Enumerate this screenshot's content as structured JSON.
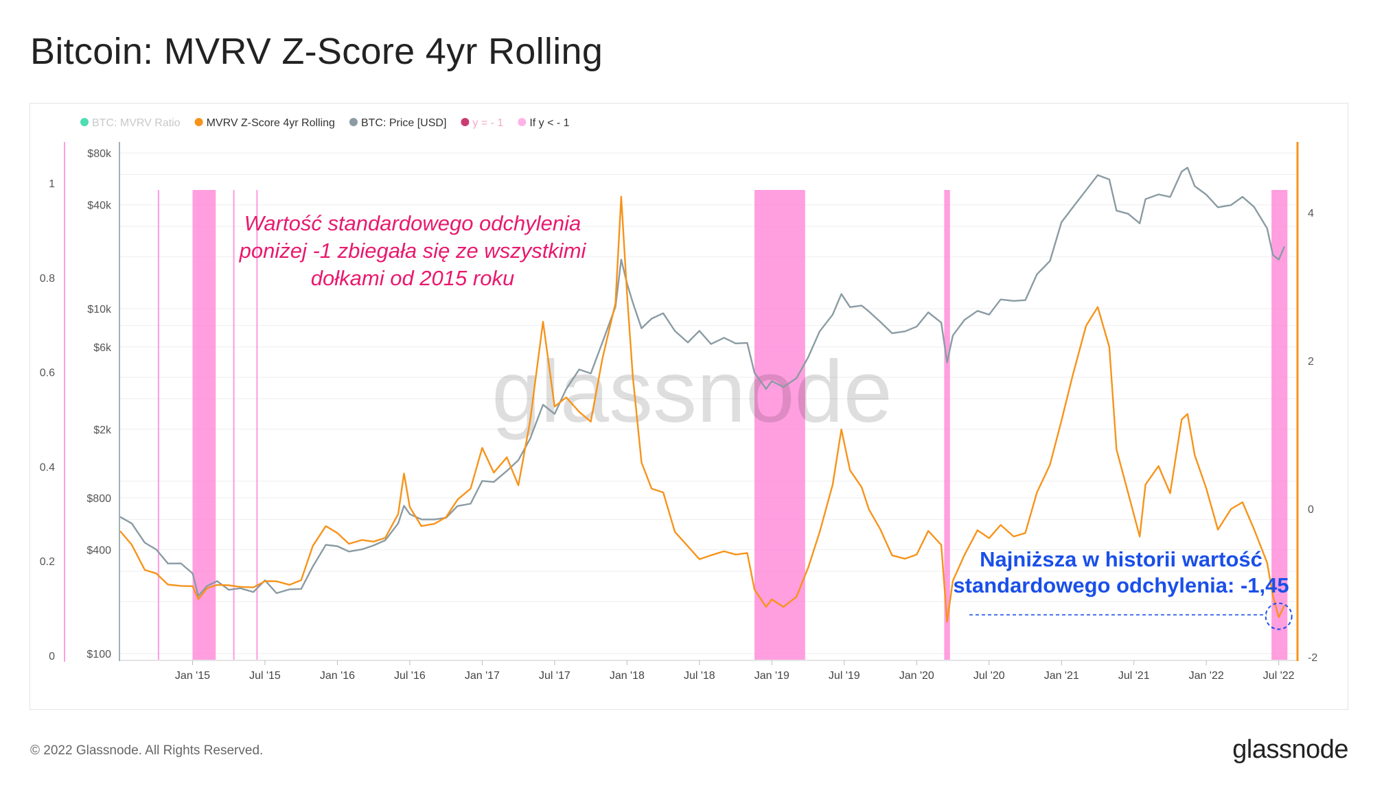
{
  "title": "Bitcoin: MVRV Z-Score 4yr Rolling",
  "footer": {
    "copyright": "© 2022 Glassnode. All Rights Reserved.",
    "logo": "glassnode"
  },
  "watermark": "glassnode",
  "chart_data": {
    "type": "line",
    "legend_placement": "top-left",
    "legend": [
      {
        "label": "BTC: MVRV Ratio",
        "color": "#2fd6a6",
        "muted": true
      },
      {
        "label": "MVRV Z-Score 4yr Rolling",
        "color": "#f7931a",
        "muted": false
      },
      {
        "label": "BTC: Price [USD]",
        "color": "#8a9ba3",
        "muted": false
      },
      {
        "label": "y = - 1",
        "color": "#c2185b",
        "muted": true
      },
      {
        "label": "If y < - 1",
        "color": "#ffb3e6",
        "muted": false
      }
    ],
    "x_ticks": [
      "Jan '15",
      "Jul '15",
      "Jan '16",
      "Jul '16",
      "Jan '17",
      "Jul '17",
      "Jan '18",
      "Jul '18",
      "Jan '19",
      "Jul '19",
      "Jan '20",
      "Jul '20",
      "Jan '21",
      "Jul '21",
      "Jan '22",
      "Jul '22"
    ],
    "x_tick_values": [
      2015.0,
      2015.5,
      2016.0,
      2016.5,
      2017.0,
      2017.5,
      2018.0,
      2018.5,
      2019.0,
      2019.5,
      2020.0,
      2020.5,
      2021.0,
      2021.5,
      2022.0,
      2022.5
    ],
    "xlim": [
      2014.5,
      2022.62
    ],
    "left_axis_ticks": [
      "1",
      "0.8",
      "0.6",
      "0.4",
      "0.2",
      "0"
    ],
    "left_axis_values": [
      1,
      0.8,
      0.6,
      0.4,
      0.2,
      0
    ],
    "price_axis_ticks": [
      "$80k",
      "$40k",
      "$10k",
      "$6k",
      "$2k",
      "$800",
      "$400",
      "$100"
    ],
    "price_axis_values": [
      80000,
      40000,
      10000,
      6000,
      2000,
      800,
      400,
      100
    ],
    "price_axis_scale": "log",
    "right_axis_ticks": [
      "4",
      "2",
      "0",
      "-2"
    ],
    "right_axis_values": [
      4,
      2,
      0,
      -2
    ],
    "grid": true,
    "series": [
      {
        "name": "BTC: Price [USD]",
        "color": "#8a9ba3",
        "axis": "price",
        "points": [
          [
            2014.5,
            620
          ],
          [
            2014.58,
            560
          ],
          [
            2014.67,
            450
          ],
          [
            2014.75,
            390
          ],
          [
            2014.83,
            340
          ],
          [
            2014.92,
            330
          ],
          [
            2015.0,
            290
          ],
          [
            2015.04,
            220
          ],
          [
            2015.1,
            240
          ],
          [
            2015.17,
            270
          ],
          [
            2015.25,
            230
          ],
          [
            2015.33,
            240
          ],
          [
            2015.42,
            230
          ],
          [
            2015.5,
            260
          ],
          [
            2015.58,
            230
          ],
          [
            2015.67,
            230
          ],
          [
            2015.75,
            240
          ],
          [
            2015.83,
            320
          ],
          [
            2015.92,
            420
          ],
          [
            2016.0,
            430
          ],
          [
            2016.08,
            380
          ],
          [
            2016.17,
            410
          ],
          [
            2016.25,
            420
          ],
          [
            2016.33,
            450
          ],
          [
            2016.42,
            580
          ],
          [
            2016.46,
            700
          ],
          [
            2016.5,
            660
          ],
          [
            2016.58,
            590
          ],
          [
            2016.67,
            600
          ],
          [
            2016.75,
            620
          ],
          [
            2016.83,
            700
          ],
          [
            2016.92,
            760
          ],
          [
            2017.0,
            980
          ],
          [
            2017.08,
            1000
          ],
          [
            2017.17,
            1150
          ],
          [
            2017.25,
            1300
          ],
          [
            2017.33,
            1800
          ],
          [
            2017.42,
            2700
          ],
          [
            2017.5,
            2500
          ],
          [
            2017.58,
            3400
          ],
          [
            2017.67,
            4400
          ],
          [
            2017.75,
            4300
          ],
          [
            2017.83,
            6200
          ],
          [
            2017.92,
            10500
          ],
          [
            2017.96,
            19000
          ],
          [
            2018.0,
            14000
          ],
          [
            2018.04,
            11000
          ],
          [
            2018.1,
            7500
          ],
          [
            2018.17,
            9000
          ],
          [
            2018.25,
            9200
          ],
          [
            2018.33,
            7500
          ],
          [
            2018.42,
            6400
          ],
          [
            2018.5,
            7300
          ],
          [
            2018.58,
            6400
          ],
          [
            2018.67,
            6600
          ],
          [
            2018.75,
            6400
          ],
          [
            2018.83,
            6300
          ],
          [
            2018.88,
            4200
          ],
          [
            2018.96,
            3500
          ],
          [
            2019.0,
            3700
          ],
          [
            2019.08,
            3600
          ],
          [
            2019.17,
            3900
          ],
          [
            2019.25,
            5200
          ],
          [
            2019.33,
            7500
          ],
          [
            2019.42,
            9000
          ],
          [
            2019.48,
            12500
          ],
          [
            2019.54,
            10000
          ],
          [
            2019.62,
            10500
          ],
          [
            2019.67,
            9700
          ],
          [
            2019.75,
            8200
          ],
          [
            2019.83,
            7400
          ],
          [
            2019.92,
            7200
          ],
          [
            2020.0,
            8000
          ],
          [
            2020.08,
            9500
          ],
          [
            2020.17,
            8200
          ],
          [
            2020.21,
            5000
          ],
          [
            2020.25,
            6800
          ],
          [
            2020.33,
            8800
          ],
          [
            2020.42,
            9600
          ],
          [
            2020.5,
            9200
          ],
          [
            2020.58,
            11500
          ],
          [
            2020.67,
            10800
          ],
          [
            2020.75,
            11500
          ],
          [
            2020.83,
            15500
          ],
          [
            2020.92,
            19000
          ],
          [
            2021.0,
            32000
          ],
          [
            2021.08,
            38000
          ],
          [
            2021.17,
            50000
          ],
          [
            2021.25,
            58000
          ],
          [
            2021.33,
            57000
          ],
          [
            2021.38,
            37000
          ],
          [
            2021.46,
            35000
          ],
          [
            2021.54,
            32000
          ],
          [
            2021.58,
            42000
          ],
          [
            2021.67,
            47000
          ],
          [
            2021.75,
            44000
          ],
          [
            2021.83,
            62000
          ],
          [
            2021.87,
            67000
          ],
          [
            2021.92,
            50000
          ],
          [
            2022.0,
            47000
          ],
          [
            2022.08,
            38000
          ],
          [
            2022.17,
            40000
          ],
          [
            2022.25,
            45000
          ],
          [
            2022.33,
            38000
          ],
          [
            2022.42,
            30000
          ],
          [
            2022.46,
            20000
          ],
          [
            2022.5,
            19500
          ],
          [
            2022.54,
            23000
          ]
        ]
      },
      {
        "name": "MVRV Z-Score 4yr Rolling",
        "color": "#f7931a",
        "axis": "right",
        "points": [
          [
            2014.5,
            -0.3
          ],
          [
            2014.58,
            -0.5
          ],
          [
            2014.67,
            -0.8
          ],
          [
            2014.75,
            -0.9
          ],
          [
            2014.83,
            -1.0
          ],
          [
            2014.92,
            -1.05
          ],
          [
            2015.0,
            -1.05
          ],
          [
            2015.04,
            -1.2
          ],
          [
            2015.1,
            -1.1
          ],
          [
            2015.17,
            -1.0
          ],
          [
            2015.25,
            -1.05
          ],
          [
            2015.33,
            -1.05
          ],
          [
            2015.42,
            -1.05
          ],
          [
            2015.5,
            -1.0
          ],
          [
            2015.58,
            -0.95
          ],
          [
            2015.67,
            -1.05
          ],
          [
            2015.75,
            -0.95
          ],
          [
            2015.83,
            -0.5
          ],
          [
            2015.92,
            -0.25
          ],
          [
            2016.0,
            -0.3
          ],
          [
            2016.08,
            -0.5
          ],
          [
            2016.17,
            -0.4
          ],
          [
            2016.25,
            -0.45
          ],
          [
            2016.33,
            -0.4
          ],
          [
            2016.42,
            -0.05
          ],
          [
            2016.46,
            0.45
          ],
          [
            2016.5,
            0.05
          ],
          [
            2016.58,
            -0.25
          ],
          [
            2016.67,
            -0.2
          ],
          [
            2016.75,
            -0.1
          ],
          [
            2016.83,
            0.1
          ],
          [
            2016.92,
            0.3
          ],
          [
            2017.0,
            0.8
          ],
          [
            2017.08,
            0.5
          ],
          [
            2017.17,
            0.7
          ],
          [
            2017.25,
            0.3
          ],
          [
            2017.33,
            1.2
          ],
          [
            2017.42,
            2.5
          ],
          [
            2017.5,
            1.4
          ],
          [
            2017.58,
            1.5
          ],
          [
            2017.67,
            1.3
          ],
          [
            2017.75,
            1.2
          ],
          [
            2017.83,
            2.0
          ],
          [
            2017.92,
            2.8
          ],
          [
            2017.96,
            4.2
          ],
          [
            2018.0,
            2.9
          ],
          [
            2018.04,
            1.8
          ],
          [
            2018.1,
            0.6
          ],
          [
            2018.17,
            0.3
          ],
          [
            2018.25,
            0.2
          ],
          [
            2018.33,
            -0.3
          ],
          [
            2018.42,
            -0.5
          ],
          [
            2018.5,
            -0.7
          ],
          [
            2018.58,
            -0.6
          ],
          [
            2018.67,
            -0.6
          ],
          [
            2018.75,
            -0.6
          ],
          [
            2018.83,
            -0.6
          ],
          [
            2018.88,
            -1.1
          ],
          [
            2018.96,
            -1.3
          ],
          [
            2019.0,
            -1.25
          ],
          [
            2019.08,
            -1.3
          ],
          [
            2019.17,
            -1.2
          ],
          [
            2019.25,
            -0.8
          ],
          [
            2019.33,
            -0.3
          ],
          [
            2019.42,
            0.3
          ],
          [
            2019.48,
            1.1
          ],
          [
            2019.54,
            0.5
          ],
          [
            2019.62,
            0.3
          ],
          [
            2019.67,
            0.0
          ],
          [
            2019.75,
            -0.3
          ],
          [
            2019.83,
            -0.6
          ],
          [
            2019.92,
            -0.7
          ],
          [
            2020.0,
            -0.6
          ],
          [
            2020.08,
            -0.3
          ],
          [
            2020.17,
            -0.5
          ],
          [
            2020.21,
            -1.5
          ],
          [
            2020.25,
            -1.0
          ],
          [
            2020.33,
            -0.6
          ],
          [
            2020.42,
            -0.3
          ],
          [
            2020.5,
            -0.4
          ],
          [
            2020.58,
            -0.2
          ],
          [
            2020.67,
            -0.4
          ],
          [
            2020.75,
            -0.3
          ],
          [
            2020.83,
            0.2
          ],
          [
            2020.92,
            0.6
          ],
          [
            2021.0,
            1.2
          ],
          [
            2021.08,
            1.8
          ],
          [
            2021.17,
            2.5
          ],
          [
            2021.25,
            2.7
          ],
          [
            2021.33,
            2.2
          ],
          [
            2021.38,
            0.8
          ],
          [
            2021.46,
            0.2
          ],
          [
            2021.54,
            -0.35
          ],
          [
            2021.58,
            0.3
          ],
          [
            2021.67,
            0.6
          ],
          [
            2021.75,
            0.2
          ],
          [
            2021.83,
            1.2
          ],
          [
            2021.87,
            1.3
          ],
          [
            2021.92,
            0.7
          ],
          [
            2022.0,
            0.3
          ],
          [
            2022.08,
            -0.3
          ],
          [
            2022.17,
            0.0
          ],
          [
            2022.25,
            0.1
          ],
          [
            2022.33,
            -0.3
          ],
          [
            2022.42,
            -0.7
          ],
          [
            2022.46,
            -1.2
          ],
          [
            2022.5,
            -1.45
          ],
          [
            2022.54,
            -1.3
          ]
        ]
      }
    ],
    "shaded_regions_if_y_below_minus_1": [
      [
        2014.76,
        2014.77
      ],
      [
        2015.0,
        2015.16
      ],
      [
        2015.28,
        2015.29
      ],
      [
        2015.44,
        2015.45
      ],
      [
        2018.88,
        2019.23
      ],
      [
        2020.19,
        2020.23
      ],
      [
        2022.45,
        2022.56
      ]
    ],
    "annotations": [
      {
        "text_lines": [
          "Wartość standardowego odchylenia",
          "poniżej -1 zbiegała się ze wszystkimi",
          "dołkami od 2015 roku"
        ],
        "color": "#e8196e",
        "style": "italic"
      },
      {
        "text_lines": [
          "Najniższa w historii wartość",
          "standardowego odchylenia: -1,45"
        ],
        "color": "#1a4fe8",
        "style": "bold",
        "marker_x": 2022.5,
        "marker_y": -1.45
      }
    ]
  }
}
